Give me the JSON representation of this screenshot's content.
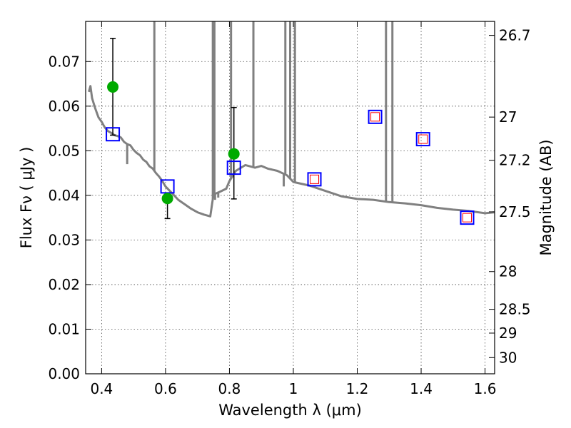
{
  "chart_data": {
    "type": "line",
    "xlabel": "Wavelength  λ (μm)",
    "ylabel_left": "Flux  Fν  ( μJy )",
    "ylabel_right": "Magnitude (AB)",
    "xlim": [
      0.35,
      1.63
    ],
    "ylim": [
      0.0,
      0.079
    ],
    "x_ticks": [
      0.4,
      0.6,
      0.8,
      1.0,
      1.2,
      1.4,
      1.6
    ],
    "x_tick_labels": [
      "0.4",
      "0.6",
      "0.8",
      "1",
      "1.2",
      "1.4",
      "1.6"
    ],
    "y_ticks": [
      0.0,
      0.01,
      0.02,
      0.03,
      0.04,
      0.05,
      0.06,
      0.07
    ],
    "y_tick_labels": [
      "0.00",
      "0.01",
      "0.02",
      "0.03",
      "0.04",
      "0.05",
      "0.06",
      "0.07"
    ],
    "right_ticks": [
      26.7,
      27.0,
      27.2,
      27.5,
      28.0,
      28.5,
      29.0,
      30.0
    ],
    "right_tick_labels": [
      "26.7",
      "27",
      "27.2",
      "27.5",
      "28",
      "28.5",
      "29",
      "30"
    ],
    "grid": true,
    "colors": {
      "model": "#808080",
      "observed": "#00aa00",
      "errorbar": "#000000",
      "synthetic_square": "#0000ff",
      "inner_square": "#ff0000"
    },
    "model_spectrum": [
      [
        0.36,
        0.0632
      ],
      [
        0.365,
        0.0645
      ],
      [
        0.37,
        0.0618
      ],
      [
        0.38,
        0.0595
      ],
      [
        0.39,
        0.0575
      ],
      [
        0.4,
        0.0565
      ],
      [
        0.41,
        0.0552
      ],
      [
        0.42,
        0.0544
      ],
      [
        0.43,
        0.054
      ],
      [
        0.44,
        0.0535
      ],
      [
        0.45,
        0.0533
      ],
      [
        0.46,
        0.053
      ],
      [
        0.47,
        0.052
      ],
      [
        0.48,
        0.0515
      ],
      [
        0.49,
        0.0512
      ],
      [
        0.5,
        0.0502
      ],
      [
        0.51,
        0.0495
      ],
      [
        0.52,
        0.049
      ],
      [
        0.53,
        0.048
      ],
      [
        0.54,
        0.0475
      ],
      [
        0.55,
        0.0465
      ],
      [
        0.56,
        0.046
      ],
      [
        0.57,
        0.045
      ],
      [
        0.58,
        0.0442
      ],
      [
        0.59,
        0.0432
      ],
      [
        0.6,
        0.042
      ],
      [
        0.62,
        0.0405
      ],
      [
        0.64,
        0.039
      ],
      [
        0.66,
        0.038
      ],
      [
        0.68,
        0.037
      ],
      [
        0.7,
        0.0362
      ],
      [
        0.72,
        0.0357
      ],
      [
        0.74,
        0.0353
      ],
      [
        0.75,
        0.0402
      ],
      [
        0.77,
        0.0408
      ],
      [
        0.79,
        0.0415
      ],
      [
        0.8,
        0.0432
      ],
      [
        0.82,
        0.0455
      ],
      [
        0.85,
        0.0468
      ],
      [
        0.88,
        0.0462
      ],
      [
        0.9,
        0.0466
      ],
      [
        0.92,
        0.046
      ],
      [
        0.95,
        0.0455
      ],
      [
        0.98,
        0.0445
      ],
      [
        1.0,
        0.043
      ],
      [
        1.05,
        0.0422
      ],
      [
        1.1,
        0.041
      ],
      [
        1.15,
        0.0398
      ],
      [
        1.2,
        0.0392
      ],
      [
        1.25,
        0.039
      ],
      [
        1.3,
        0.0385
      ],
      [
        1.35,
        0.0382
      ],
      [
        1.4,
        0.0378
      ],
      [
        1.45,
        0.0372
      ],
      [
        1.5,
        0.0368
      ],
      [
        1.55,
        0.0365
      ],
      [
        1.6,
        0.036
      ],
      [
        1.63,
        0.0362
      ]
    ],
    "emission_lines": [
      {
        "x": 0.565,
        "top": 0.079
      },
      {
        "x": 0.748,
        "top": 0.079
      },
      {
        "x": 0.753,
        "top": 0.079
      },
      {
        "x": 0.805,
        "top": 0.079
      },
      {
        "x": 0.875,
        "top": 0.079
      },
      {
        "x": 0.975,
        "top": 0.079
      },
      {
        "x": 0.99,
        "top": 0.079
      },
      {
        "x": 1.005,
        "top": 0.079
      },
      {
        "x": 1.29,
        "top": 0.079
      },
      {
        "x": 1.31,
        "top": 0.079
      }
    ],
    "absorption_lines": [
      {
        "x": 0.48,
        "bottom": 0.047
      },
      {
        "x": 0.755,
        "bottom": 0.039
      },
      {
        "x": 0.765,
        "bottom": 0.0395
      },
      {
        "x": 0.97,
        "bottom": 0.042
      }
    ],
    "observed_points": [
      {
        "x": 0.435,
        "y": 0.0643,
        "yerr_low": 0.0535,
        "yerr_high": 0.0752
      },
      {
        "x": 0.606,
        "y": 0.0393,
        "yerr_low": 0.0348,
        "yerr_high": 0.0398
      },
      {
        "x": 0.814,
        "y": 0.0493,
        "yerr_low": 0.0392,
        "yerr_high": 0.0597
      }
    ],
    "synthetic_points": [
      {
        "x": 0.435,
        "y": 0.0537,
        "inner": false
      },
      {
        "x": 0.606,
        "y": 0.042,
        "inner": false
      },
      {
        "x": 0.814,
        "y": 0.0462,
        "inner": false
      },
      {
        "x": 1.066,
        "y": 0.0436,
        "inner": true
      },
      {
        "x": 1.256,
        "y": 0.0576,
        "inner": true
      },
      {
        "x": 1.406,
        "y": 0.0526,
        "inner": true
      },
      {
        "x": 1.544,
        "y": 0.035,
        "inner": true
      }
    ]
  }
}
